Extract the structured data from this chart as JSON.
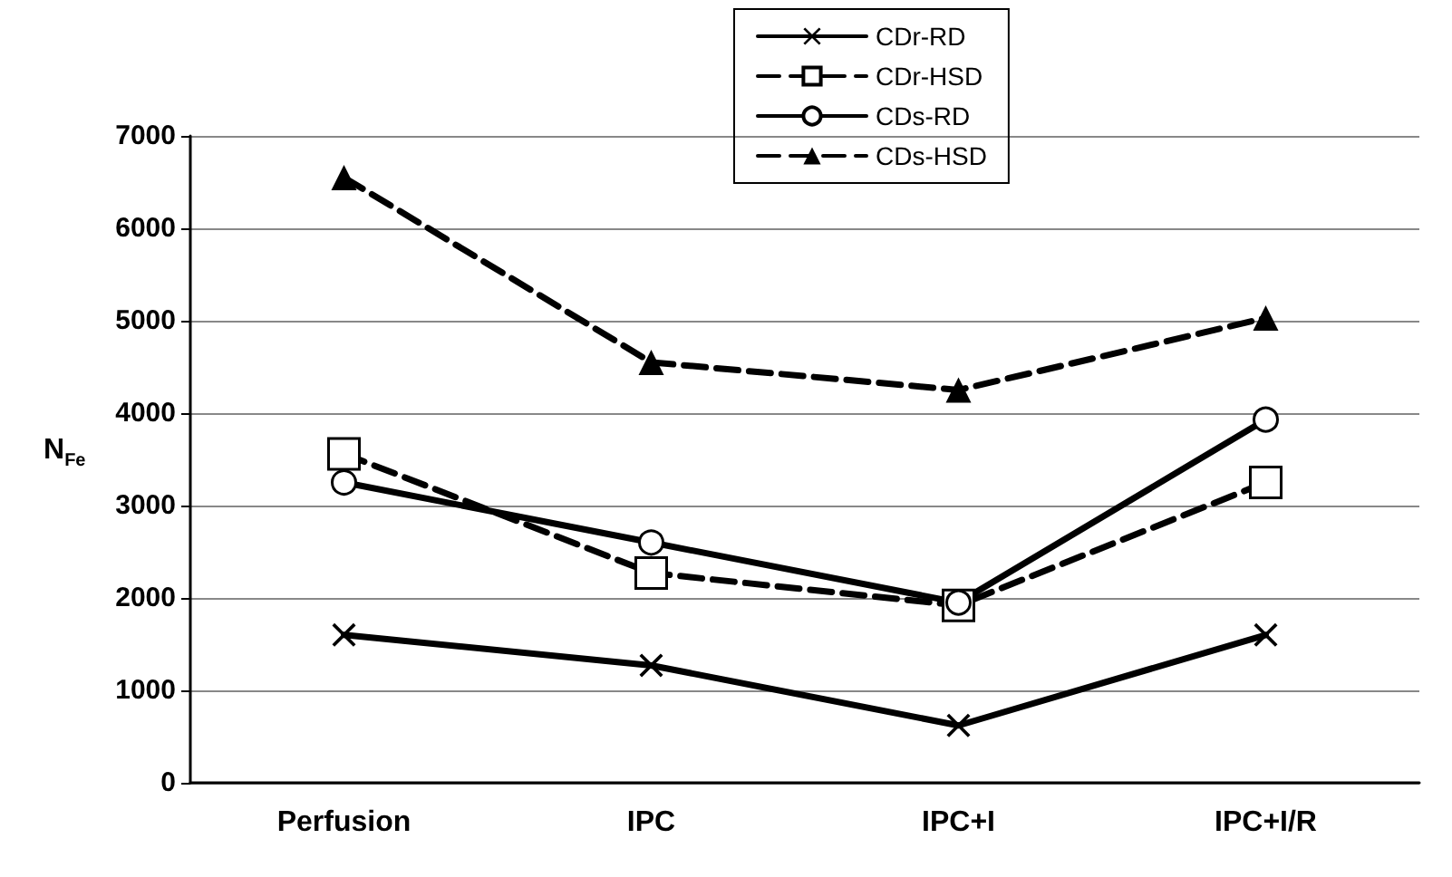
{
  "chart_data": {
    "type": "line",
    "ylabel": "N$_{Fe}$",
    "categories": [
      "Perfusion",
      "IPC",
      "IPC+I",
      "IPC+I/R"
    ],
    "ylim": [
      0,
      7000
    ],
    "yticks": [
      0,
      1000,
      2000,
      3000,
      4000,
      5000,
      6000,
      7000
    ],
    "grid": "y",
    "legend": "top",
    "series": [
      {
        "name": "CDr-RD",
        "color": "#000000",
        "marker": "cross",
        "line_style": "solid",
        "values": [
          1600,
          1270,
          620,
          1600
        ]
      },
      {
        "name": "CDr-HSD",
        "color": "#000000",
        "marker": "square",
        "line_style": "dashed",
        "values": [
          3560,
          2270,
          1920,
          3250
        ]
      },
      {
        "name": "CDs-RD",
        "color": "#000000",
        "marker": "circle",
        "line_style": "solid",
        "values": [
          3250,
          2600,
          1950,
          3930
        ]
      },
      {
        "name": "CDs-HSD",
        "color": "#000000",
        "marker": "triangle",
        "line_style": "dashed",
        "values": [
          6550,
          4550,
          4250,
          5030
        ]
      }
    ]
  }
}
